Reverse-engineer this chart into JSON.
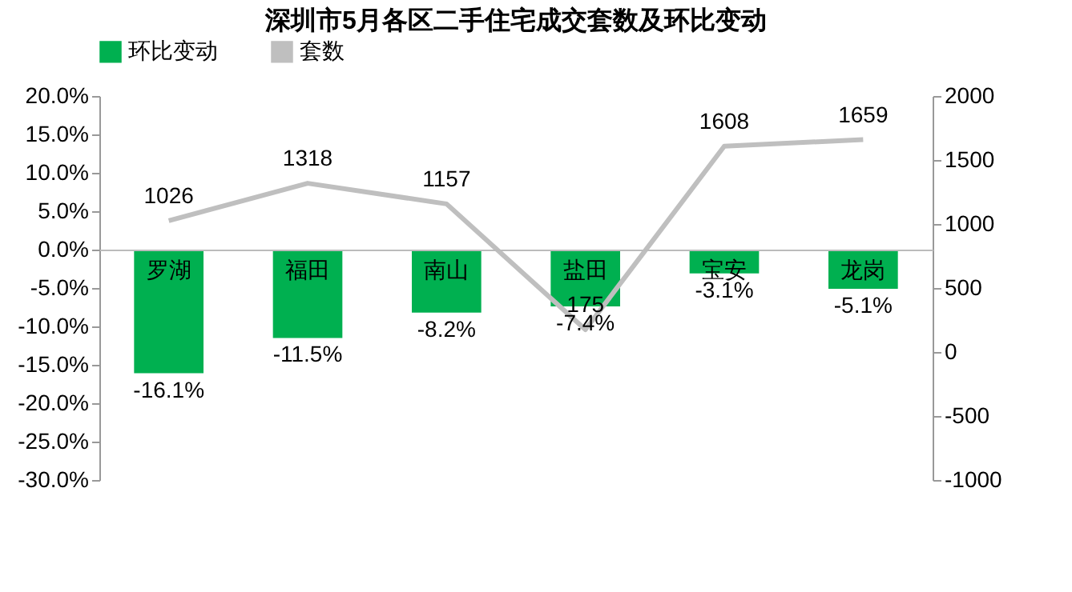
{
  "chart_data": {
    "type": "bar",
    "title": "深圳市5月各区二手住宅成交套数及环比变动",
    "categories": [
      "罗湖",
      "福田",
      "南山",
      "盐田",
      "宝安",
      "龙岗"
    ],
    "series": [
      {
        "name": "环比变动",
        "color": "#00b050",
        "values": [
          -16.1,
          -11.5,
          -8.2,
          -7.4,
          -3.1,
          -5.1
        ],
        "value_labels": [
          "-16.1%",
          "-11.5%",
          "-8.2%",
          "-7.4%",
          "-3.1%",
          "-5.1%"
        ]
      },
      {
        "name": "套数",
        "type": "line",
        "axis": "y2",
        "color": "#bfbfbf",
        "values": [
          1026,
          1318,
          1157,
          175,
          1608,
          1659
        ],
        "value_labels": [
          "1026",
          "1318",
          "1157",
          "175",
          "1608",
          "1659"
        ]
      }
    ],
    "ylim": [
      -30,
      20
    ],
    "yticks": [
      {
        "value": -30,
        "label": "-30.0%"
      },
      {
        "value": -25,
        "label": "-25.0%"
      },
      {
        "value": -20,
        "label": "-20.0%"
      },
      {
        "value": -15,
        "label": "-15.0%"
      },
      {
        "value": -10,
        "label": "-10.0%"
      },
      {
        "value": -5,
        "label": "-5.0%"
      },
      {
        "value": 0,
        "label": "0.0%"
      },
      {
        "value": 5,
        "label": "5.0%"
      },
      {
        "value": 10,
        "label": "10.0%"
      },
      {
        "value": 15,
        "label": "15.0%"
      },
      {
        "value": 20,
        "label": "20.0%"
      }
    ],
    "y2lim": [
      -1000,
      2000
    ],
    "y2ticks": [
      -1000,
      -500,
      0,
      500,
      1000,
      1500,
      2000
    ],
    "legend": "top",
    "grid": false,
    "marker": "none",
    "line_style": "solid"
  }
}
